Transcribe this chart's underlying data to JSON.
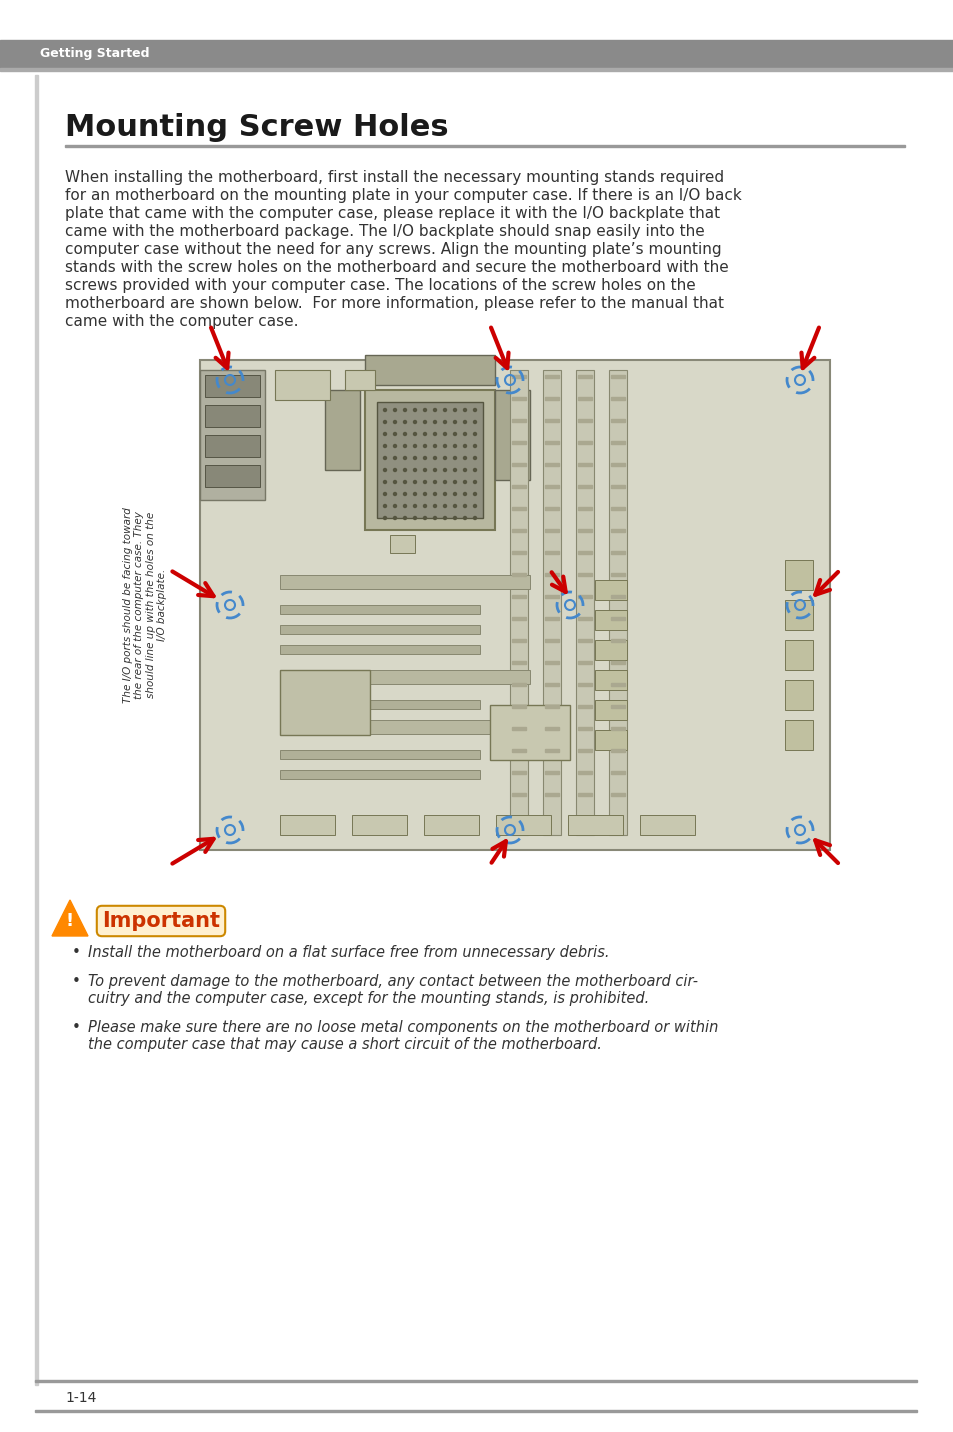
{
  "page_bg": "#ffffff",
  "header_bg": "#8a8a8a",
  "header_text": "Getting Started",
  "header_text_color": "#ffffff",
  "section_title": "Mounting Screw Holes",
  "section_title_color": "#1a1a1a",
  "section_title_size": 22,
  "body_text_lines": [
    "When installing the motherboard, first install the necessary mounting stands required",
    "for an motherboard on the mounting plate in your computer case. If there is an I/O back",
    "plate that came with the computer case, please replace it with the I/O backplate that",
    "came with the motherboard package. The I/O backplate should snap easily into the",
    "computer case without the need for any screws. Align the mounting plate’s mounting",
    "stands with the screw holes on the motherboard and secure the motherboard with the",
    "screws provided with your computer case. The locations of the screw holes on the",
    "motherboard are shown below.  For more information, please refer to the manual that",
    "came with the computer case."
  ],
  "body_text_color": "#333333",
  "body_text_size": 11,
  "board_bg": "#d8d8c8",
  "board_border": "#888877",
  "screw_hole_color": "#4488cc",
  "arrow_color": "#cc0000",
  "label_text_color": "#333333",
  "rotated_label": "The I/O ports should be facing toward\nthe rear of the computer case. They\nshould line up with the holes on the\nI/O backplate.",
  "important_title": "Important",
  "bullet_points": [
    "Install the motherboard on a flat surface free from unnecessary debris.",
    "To prevent damage to the motherboard, any contact between the motherboard cir-\ncuitry and the computer case, except for the mounting stands, is prohibited.",
    "Please make sure there are no loose metal components on the motherboard or within\nthe computer case that may cause a short circuit of the motherboard."
  ],
  "footer_text": "1-14",
  "footer_text_color": "#333333",
  "divider_color": "#999999"
}
